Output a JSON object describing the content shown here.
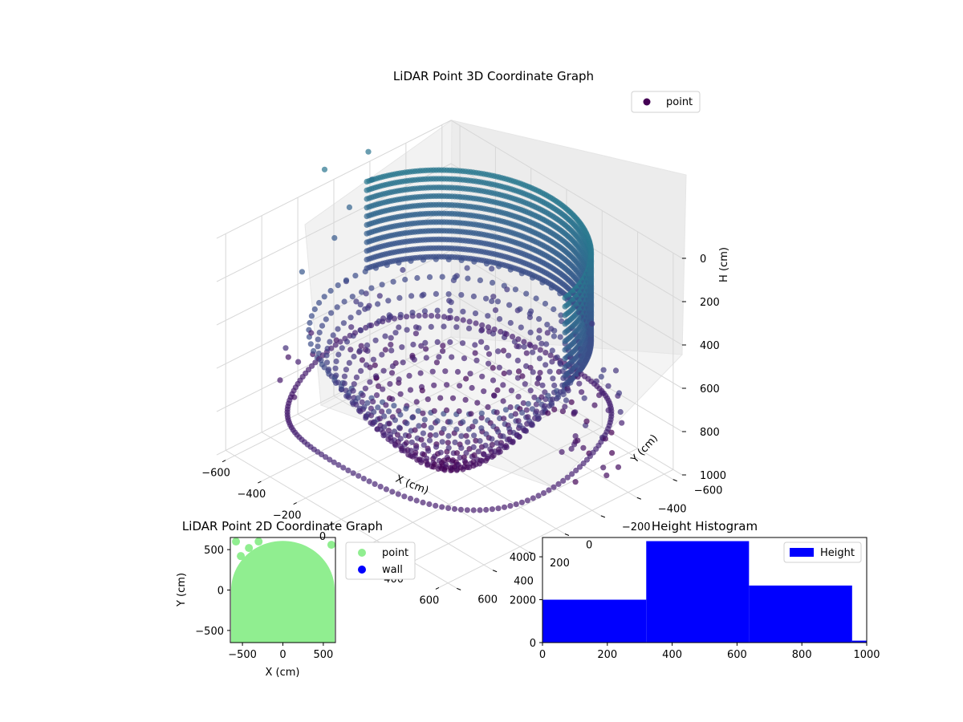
{
  "chart_data": [
    {
      "type": "scatter3d",
      "title": "LiDAR Point 3D Coordinate Graph",
      "xlabel": "X (cm)",
      "ylabel": "Y (cm)",
      "zlabel": "H (cm)",
      "xlim": [
        -650,
        650
      ],
      "ylim": [
        -650,
        650
      ],
      "zlim": [
        1000,
        0
      ],
      "x_ticks": [
        -600,
        -400,
        -200,
        0,
        200,
        400,
        600
      ],
      "y_ticks": [
        -600,
        -400,
        -200,
        0,
        200,
        400,
        600
      ],
      "z_ticks": [
        0,
        200,
        400,
        600,
        800,
        1000
      ],
      "z_inverted": true,
      "grid": true,
      "colormap": "viridis",
      "legend": {
        "placement": "top-right",
        "entries": [
          {
            "label": "point",
            "color": "#440154"
          }
        ]
      },
      "series": [
        {
          "name": "point",
          "description_levels": {
            "rim_height": 0,
            "bowl_bottom": 1000,
            "ring_height": 800
          }
        }
      ]
    },
    {
      "type": "scatter",
      "title": "LiDAR Point 2D Coordinate Graph",
      "xlabel": "X (cm)",
      "ylabel": "Y (cm)",
      "xlim": [
        -650,
        650
      ],
      "ylim": [
        -650,
        650
      ],
      "x_ticks": [
        -500,
        0,
        500
      ],
      "y_ticks": [
        -500,
        0,
        500
      ],
      "legend": {
        "placement": "outside-right",
        "entries": [
          {
            "label": "point",
            "color": "#90ee90"
          },
          {
            "label": "wall",
            "color": "#0000ff"
          }
        ]
      },
      "series": [
        {
          "name": "point",
          "color": "#90ee90",
          "radius_cm": 640
        },
        {
          "name": "wall",
          "color": "#0000ff",
          "values": []
        }
      ]
    },
    {
      "type": "bar",
      "title": "Height Histogram",
      "xlabel": "",
      "ylabel": "",
      "xlim": [
        0,
        1000
      ],
      "ylim": [
        0,
        4900
      ],
      "x_ticks": [
        0,
        200,
        400,
        600,
        800,
        1000
      ],
      "y_ticks": [
        0,
        2000,
        4000
      ],
      "legend": {
        "placement": "top-right",
        "entries": [
          {
            "label": "Height",
            "color": "#0000ff"
          }
        ]
      },
      "color": "#0000ff",
      "bins": [
        {
          "start": 0,
          "end": 320,
          "count": 2000
        },
        {
          "start": 320,
          "end": 637,
          "count": 4730
        },
        {
          "start": 637,
          "end": 955,
          "count": 2660
        },
        {
          "start": 955,
          "end": 1000,
          "count": 90
        }
      ]
    }
  ]
}
